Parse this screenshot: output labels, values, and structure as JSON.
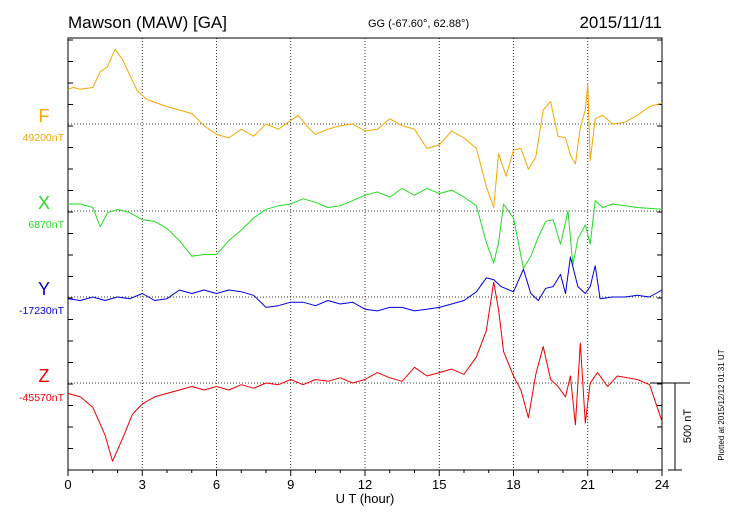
{
  "header": {
    "station": "Mawson (MAW)  [GA]",
    "coords": "GG (-67.60°,  62.88°)",
    "date": "2015/11/11"
  },
  "footer": {
    "plotted": "Plotted at 2015/12/12 01:31  UT"
  },
  "chart_data": {
    "type": "line",
    "xlabel": "U T (hour)",
    "xlim": [
      0,
      24
    ],
    "xticks": [
      0,
      3,
      6,
      9,
      12,
      15,
      18,
      21,
      24
    ],
    "scale_bar": {
      "label": "500 nT",
      "value_nT": 500
    },
    "series": [
      {
        "name": "F",
        "baseline_label": "49200nT",
        "baseline_nT": 49200,
        "color": "#f5a700",
        "points": [
          [
            0,
            200
          ],
          [
            0.2,
            210
          ],
          [
            0.5,
            200
          ],
          [
            1.0,
            210
          ],
          [
            1.3,
            300
          ],
          [
            1.6,
            330
          ],
          [
            1.9,
            430
          ],
          [
            2.2,
            370
          ],
          [
            2.5,
            280
          ],
          [
            2.8,
            190
          ],
          [
            3.2,
            140
          ],
          [
            3.6,
            120
          ],
          [
            4.0,
            100
          ],
          [
            4.5,
            80
          ],
          [
            5.0,
            60
          ],
          [
            5.5,
            -10
          ],
          [
            6.0,
            -60
          ],
          [
            6.5,
            -80
          ],
          [
            7.0,
            -30
          ],
          [
            7.5,
            -70
          ],
          [
            8.0,
            0
          ],
          [
            8.5,
            -30
          ],
          [
            9.0,
            20
          ],
          [
            9.3,
            50
          ],
          [
            9.7,
            -20
          ],
          [
            10.0,
            -60
          ],
          [
            10.5,
            -30
          ],
          [
            11.0,
            -10
          ],
          [
            11.5,
            0
          ],
          [
            12.0,
            -40
          ],
          [
            12.5,
            -30
          ],
          [
            13.0,
            30
          ],
          [
            13.5,
            -10
          ],
          [
            14.0,
            -30
          ],
          [
            14.5,
            -140
          ],
          [
            15.0,
            -120
          ],
          [
            15.5,
            -40
          ],
          [
            16.0,
            -80
          ],
          [
            16.5,
            -140
          ],
          [
            16.9,
            -360
          ],
          [
            17.2,
            -480
          ],
          [
            17.4,
            -170
          ],
          [
            17.7,
            -300
          ],
          [
            18.0,
            -150
          ],
          [
            18.3,
            -140
          ],
          [
            18.6,
            -260
          ],
          [
            18.9,
            -190
          ],
          [
            19.2,
            80
          ],
          [
            19.5,
            130
          ],
          [
            19.8,
            -70
          ],
          [
            20.1,
            -80
          ],
          [
            20.3,
            -180
          ],
          [
            20.5,
            -230
          ],
          [
            20.7,
            -20
          ],
          [
            20.9,
            80
          ],
          [
            21.0,
            230
          ],
          [
            21.1,
            -210
          ],
          [
            21.3,
            30
          ],
          [
            21.6,
            50
          ],
          [
            22.0,
            0
          ],
          [
            22.5,
            10
          ],
          [
            23.0,
            50
          ],
          [
            23.5,
            100
          ],
          [
            24.0,
            120
          ]
        ]
      },
      {
        "name": "X",
        "baseline_label": "6870nT",
        "baseline_nT": 6870,
        "color": "#22dd22",
        "points": [
          [
            0,
            40
          ],
          [
            0.5,
            40
          ],
          [
            1.0,
            20
          ],
          [
            1.3,
            -90
          ],
          [
            1.6,
            -10
          ],
          [
            2.0,
            10
          ],
          [
            2.5,
            -10
          ],
          [
            3.0,
            -50
          ],
          [
            3.5,
            -60
          ],
          [
            4.0,
            -100
          ],
          [
            4.5,
            -170
          ],
          [
            5.0,
            -260
          ],
          [
            5.5,
            -250
          ],
          [
            6.0,
            -250
          ],
          [
            6.5,
            -170
          ],
          [
            7.0,
            -110
          ],
          [
            7.5,
            -40
          ],
          [
            8.0,
            10
          ],
          [
            8.5,
            30
          ],
          [
            9.0,
            40
          ],
          [
            9.5,
            70
          ],
          [
            10.0,
            50
          ],
          [
            10.5,
            20
          ],
          [
            11.0,
            30
          ],
          [
            11.5,
            60
          ],
          [
            12.0,
            90
          ],
          [
            12.5,
            110
          ],
          [
            13.0,
            80
          ],
          [
            13.5,
            130
          ],
          [
            14.0,
            90
          ],
          [
            14.5,
            130
          ],
          [
            15.0,
            100
          ],
          [
            15.5,
            120
          ],
          [
            16.0,
            80
          ],
          [
            16.5,
            30
          ],
          [
            16.9,
            -180
          ],
          [
            17.2,
            -300
          ],
          [
            17.4,
            -180
          ],
          [
            17.6,
            40
          ],
          [
            18.0,
            -40
          ],
          [
            18.4,
            -330
          ],
          [
            18.7,
            -260
          ],
          [
            19.0,
            -150
          ],
          [
            19.3,
            -60
          ],
          [
            19.6,
            -50
          ],
          [
            19.9,
            -190
          ],
          [
            20.2,
            0
          ],
          [
            20.4,
            -310
          ],
          [
            20.6,
            -160
          ],
          [
            20.9,
            -80
          ],
          [
            21.1,
            -190
          ],
          [
            21.3,
            60
          ],
          [
            21.6,
            20
          ],
          [
            22.0,
            40
          ],
          [
            23.0,
            20
          ],
          [
            24.0,
            10
          ]
        ]
      },
      {
        "name": "Y",
        "baseline_label": "-17230nT",
        "baseline_nT": -17230,
        "color": "#0000dd",
        "points": [
          [
            0,
            -10
          ],
          [
            0.5,
            -20
          ],
          [
            1.0,
            0
          ],
          [
            1.5,
            -20
          ],
          [
            2.0,
            0
          ],
          [
            2.5,
            -10
          ],
          [
            3.0,
            20
          ],
          [
            3.5,
            -20
          ],
          [
            4.0,
            -10
          ],
          [
            4.5,
            40
          ],
          [
            5.0,
            20
          ],
          [
            5.5,
            40
          ],
          [
            6.0,
            20
          ],
          [
            6.5,
            40
          ],
          [
            7.0,
            30
          ],
          [
            7.5,
            10
          ],
          [
            8.0,
            -60
          ],
          [
            8.5,
            -50
          ],
          [
            9.0,
            -30
          ],
          [
            9.5,
            -30
          ],
          [
            10.0,
            -50
          ],
          [
            10.5,
            -20
          ],
          [
            11.0,
            -40
          ],
          [
            11.5,
            -30
          ],
          [
            12.0,
            -70
          ],
          [
            12.5,
            -80
          ],
          [
            13.0,
            -60
          ],
          [
            13.5,
            -60
          ],
          [
            14.0,
            -80
          ],
          [
            14.5,
            -70
          ],
          [
            15.0,
            -60
          ],
          [
            15.5,
            -40
          ],
          [
            16.0,
            -20
          ],
          [
            16.5,
            30
          ],
          [
            16.9,
            110
          ],
          [
            17.2,
            100
          ],
          [
            17.5,
            60
          ],
          [
            18.0,
            30
          ],
          [
            18.4,
            160
          ],
          [
            18.7,
            20
          ],
          [
            19.0,
            -20
          ],
          [
            19.3,
            50
          ],
          [
            19.6,
            60
          ],
          [
            19.9,
            130
          ],
          [
            20.1,
            20
          ],
          [
            20.3,
            230
          ],
          [
            20.6,
            60
          ],
          [
            20.9,
            20
          ],
          [
            21.1,
            60
          ],
          [
            21.3,
            180
          ],
          [
            21.5,
            -10
          ],
          [
            22.0,
            0
          ],
          [
            22.5,
            0
          ],
          [
            23.0,
            10
          ],
          [
            23.5,
            0
          ],
          [
            24.0,
            40
          ]
        ]
      },
      {
        "name": "Z",
        "baseline_label": "-45570nT",
        "baseline_nT": -45570,
        "color": "#ee0000",
        "points": [
          [
            0,
            -60
          ],
          [
            0.5,
            -80
          ],
          [
            1.0,
            -140
          ],
          [
            1.5,
            -300
          ],
          [
            1.8,
            -450
          ],
          [
            2.2,
            -320
          ],
          [
            2.6,
            -180
          ],
          [
            3.0,
            -120
          ],
          [
            3.5,
            -80
          ],
          [
            4.0,
            -60
          ],
          [
            4.5,
            -40
          ],
          [
            5.0,
            -20
          ],
          [
            5.5,
            -40
          ],
          [
            6.0,
            -20
          ],
          [
            6.5,
            -40
          ],
          [
            7.0,
            -10
          ],
          [
            7.5,
            -30
          ],
          [
            8.0,
            0
          ],
          [
            8.5,
            -10
          ],
          [
            9.0,
            20
          ],
          [
            9.5,
            -10
          ],
          [
            10.0,
            20
          ],
          [
            10.5,
            10
          ],
          [
            11.0,
            30
          ],
          [
            11.5,
            0
          ],
          [
            12.0,
            20
          ],
          [
            12.5,
            60
          ],
          [
            13.0,
            30
          ],
          [
            13.5,
            10
          ],
          [
            14.0,
            90
          ],
          [
            14.5,
            40
          ],
          [
            15.0,
            60
          ],
          [
            15.5,
            80
          ],
          [
            16.0,
            50
          ],
          [
            16.5,
            150
          ],
          [
            16.9,
            300
          ],
          [
            17.2,
            580
          ],
          [
            17.4,
            420
          ],
          [
            17.6,
            180
          ],
          [
            18.0,
            40
          ],
          [
            18.3,
            -40
          ],
          [
            18.6,
            -200
          ],
          [
            18.9,
            50
          ],
          [
            19.2,
            210
          ],
          [
            19.5,
            20
          ],
          [
            19.8,
            -20
          ],
          [
            20.1,
            -80
          ],
          [
            20.3,
            40
          ],
          [
            20.5,
            -240
          ],
          [
            20.7,
            230
          ],
          [
            20.9,
            -230
          ],
          [
            21.1,
            0
          ],
          [
            21.4,
            60
          ],
          [
            21.8,
            -20
          ],
          [
            22.2,
            40
          ],
          [
            23.0,
            20
          ],
          [
            23.5,
            -10
          ],
          [
            24.0,
            -220
          ]
        ]
      }
    ]
  }
}
